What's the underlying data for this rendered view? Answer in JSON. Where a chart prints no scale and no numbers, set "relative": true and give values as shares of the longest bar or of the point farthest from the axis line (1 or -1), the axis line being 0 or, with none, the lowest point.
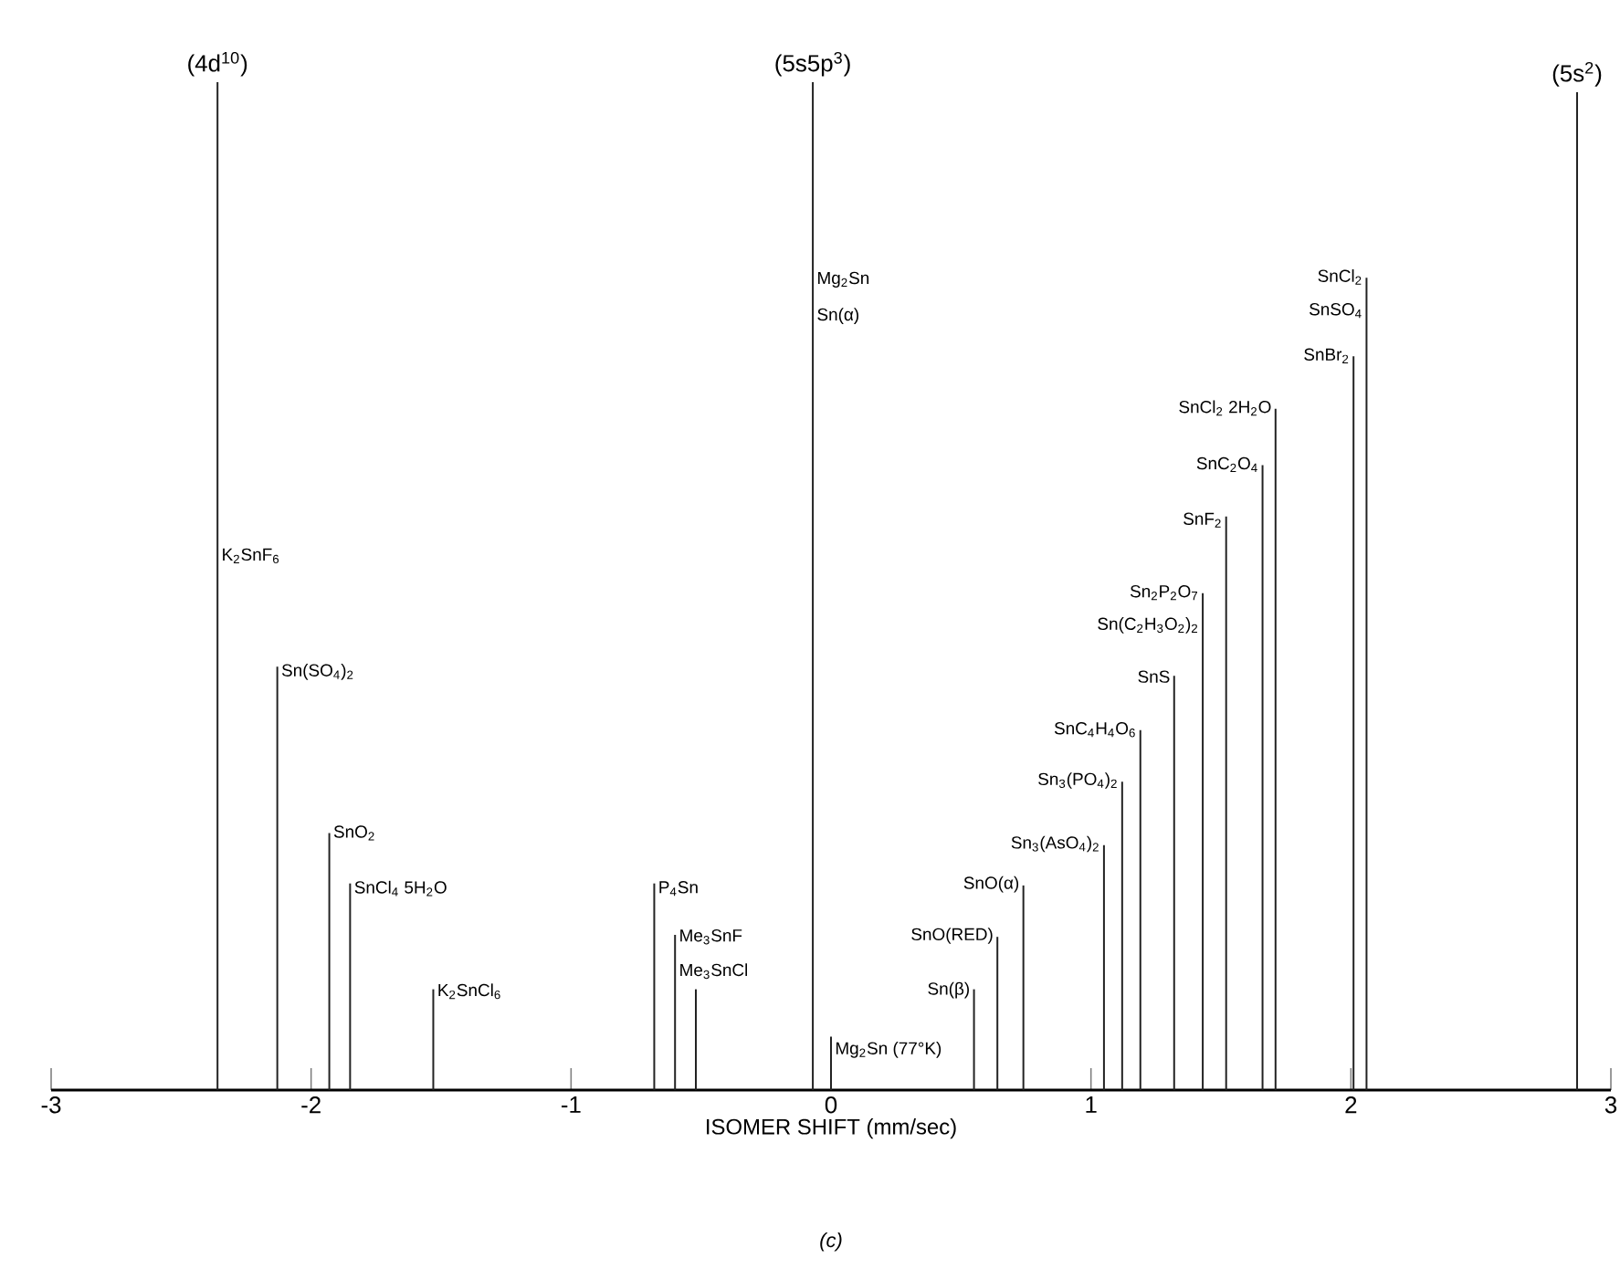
{
  "chart_data": {
    "type": "bar",
    "relative": true,
    "color": "#222222",
    "xlabel": "ISOMER SHIFT (mm/sec)",
    "xlim": [
      -3,
      3
    ],
    "xticks": [
      -3,
      -2,
      -1,
      0,
      1,
      2,
      3
    ],
    "x": [
      -2.36,
      -2.13,
      -1.93,
      -1.85,
      -1.53,
      -0.68,
      -0.6,
      -0.52,
      -0.07,
      0.0,
      0.55,
      0.64,
      0.74,
      1.05,
      1.12,
      1.19,
      1.32,
      1.43,
      1.52,
      1.66,
      1.71,
      2.01,
      2.06,
      2.87
    ],
    "values": [
      1.0,
      0.42,
      0.255,
      0.205,
      0.1,
      0.205,
      0.154,
      0.1,
      1.0,
      0.053,
      0.1,
      0.152,
      0.203,
      0.243,
      0.306,
      0.357,
      0.411,
      0.493,
      0.569,
      0.62,
      0.676,
      0.728,
      0.806,
      0.99
    ],
    "annotations": [
      {
        "text": "(4d$^{10}$)",
        "x": -2.36,
        "y": 1.0
      },
      {
        "text": "(5s5p$^{3}$)",
        "x": -0.07,
        "y": 1.0
      },
      {
        "text": "(5s$^{2}$)",
        "x": 2.87,
        "y": 0.99
      },
      {
        "text": "K$_{2}$SnF$_{6}$",
        "x": -2.36,
        "y": 0.53
      },
      {
        "text": "Sn(SO$_{4}$)$_{2}$",
        "x": -2.13,
        "y": 0.415
      },
      {
        "text": "SnO$_{2}$",
        "x": -1.93,
        "y": 0.255
      },
      {
        "text": "SnCl$_{4}$ 5H$_{2}$O",
        "x": -1.85,
        "y": 0.2
      },
      {
        "text": "K$_{2}$SnCl$_{6}$",
        "x": -1.53,
        "y": 0.098
      },
      {
        "text": "P$_{4}$Sn",
        "x": -0.68,
        "y": 0.2
      },
      {
        "text": "Me$_{3}$SnF",
        "x": -0.6,
        "y": 0.152
      },
      {
        "text": "Me$_{3}$SnCl",
        "x": -0.6,
        "y": 0.118
      },
      {
        "text": "Mg$_{2}$Sn",
        "x": -0.07,
        "y": 0.804
      },
      {
        "text": "Sn(α)",
        "x": -0.07,
        "y": 0.768
      },
      {
        "text": "Mg$_{2}$Sn (77°K)",
        "x": 0.0,
        "y": 0.04
      },
      {
        "text": "Sn(β)",
        "x": 0.55,
        "y": 0.098
      },
      {
        "text": "SnO(RED)",
        "x": 0.64,
        "y": 0.152
      },
      {
        "text": "SnO(α)",
        "x": 0.74,
        "y": 0.203
      },
      {
        "text": "Sn$_{3}$(AsO$_{4}$)$_{2}$",
        "x": 1.05,
        "y": 0.243
      },
      {
        "text": "Sn$_{3}$(PO$_{4}$)$_{2}$",
        "x": 1.12,
        "y": 0.306
      },
      {
        "text": "SnC$_{4}$H$_{4}$O$_{6}$",
        "x": 1.19,
        "y": 0.357
      },
      {
        "text": "SnS",
        "x": 1.32,
        "y": 0.411
      },
      {
        "text": "Sn$_{2}$P$_{2}$O$_{7}$",
        "x": 1.43,
        "y": 0.493
      },
      {
        "text": "Sn(C$_{2}$H$_{3}$O$_{2}$)$_{2}$",
        "x": 1.43,
        "y": 0.46
      },
      {
        "text": "SnF$_{2}$",
        "x": 1.52,
        "y": 0.565
      },
      {
        "text": "SnC$_{2}$O$_{4}$",
        "x": 1.66,
        "y": 0.62
      },
      {
        "text": "SnCl$_{2}$ 2H$_{2}$O",
        "x": 1.71,
        "y": 0.676
      },
      {
        "text": "SnBr$_{2}$",
        "x": 2.01,
        "y": 0.728
      },
      {
        "text": "SnCl$_{2}$",
        "x": 2.06,
        "y": 0.806
      },
      {
        "text": "SnSO$_{4}$",
        "x": 2.06,
        "y": 0.773
      },
      "(c)"
    ]
  }
}
